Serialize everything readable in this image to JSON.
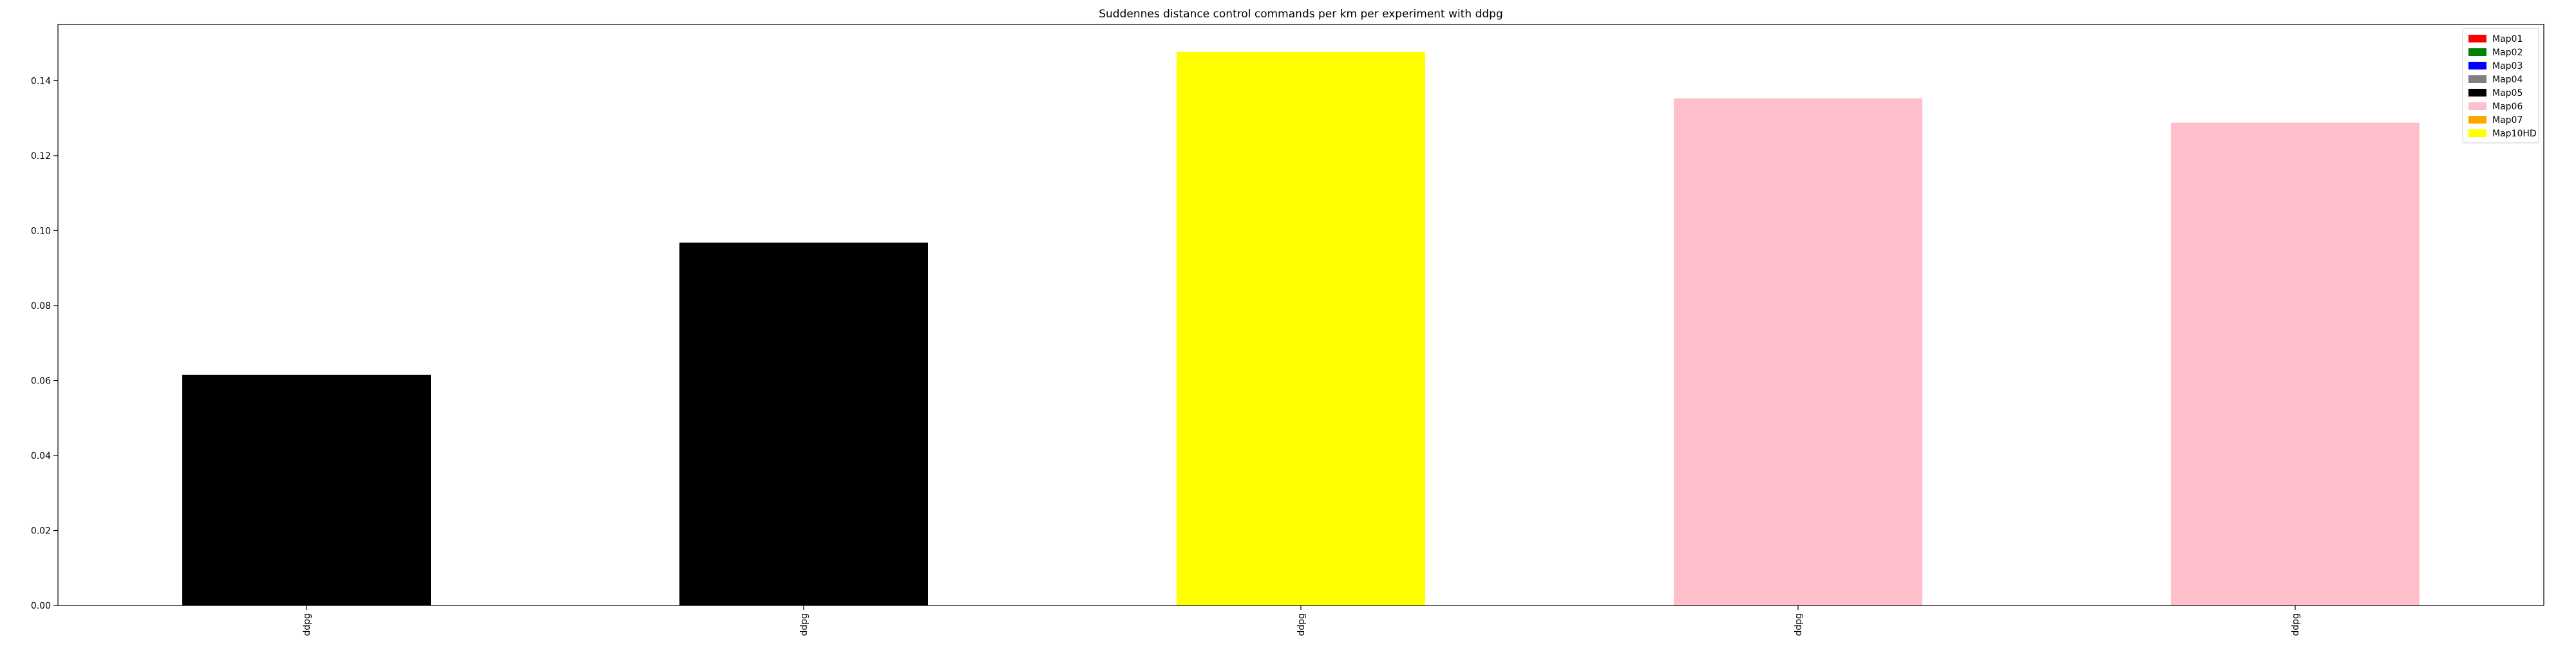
{
  "chart_data": {
    "type": "bar",
    "title": "Suddennes distance control commands per km per experiment with ddpg",
    "xlabel": "",
    "ylabel": "",
    "categories": [
      "ddpg",
      "ddpg",
      "ddpg",
      "ddpg",
      "ddpg"
    ],
    "values": [
      0.0615,
      0.0968,
      0.1477,
      0.1353,
      0.1288
    ],
    "bar_color_legend_entries": [
      "Map05",
      "Map05",
      "Map10HD",
      "Map06",
      "Map06"
    ],
    "ylim": [
      0.0,
      0.155
    ],
    "yticks": [
      0.0,
      0.02,
      0.04,
      0.06,
      0.08,
      0.1,
      0.12,
      0.14
    ],
    "ytick_labels": [
      "0.00",
      "0.02",
      "0.04",
      "0.06",
      "0.08",
      "0.10",
      "0.12",
      "0.14"
    ],
    "grid": false,
    "legend": {
      "placement": "top-right",
      "entries": [
        {
          "label": "Map01",
          "color": "#ff0000"
        },
        {
          "label": "Map02",
          "color": "#008000"
        },
        {
          "label": "Map03",
          "color": "#0000ff"
        },
        {
          "label": "Map04",
          "color": "#808080"
        },
        {
          "label": "Map05",
          "color": "#000000"
        },
        {
          "label": "Map06",
          "color": "#ffc0cb"
        },
        {
          "label": "Map07",
          "color": "#ffa500"
        },
        {
          "label": "Map10HD",
          "color": "#ffff00"
        }
      ]
    }
  }
}
